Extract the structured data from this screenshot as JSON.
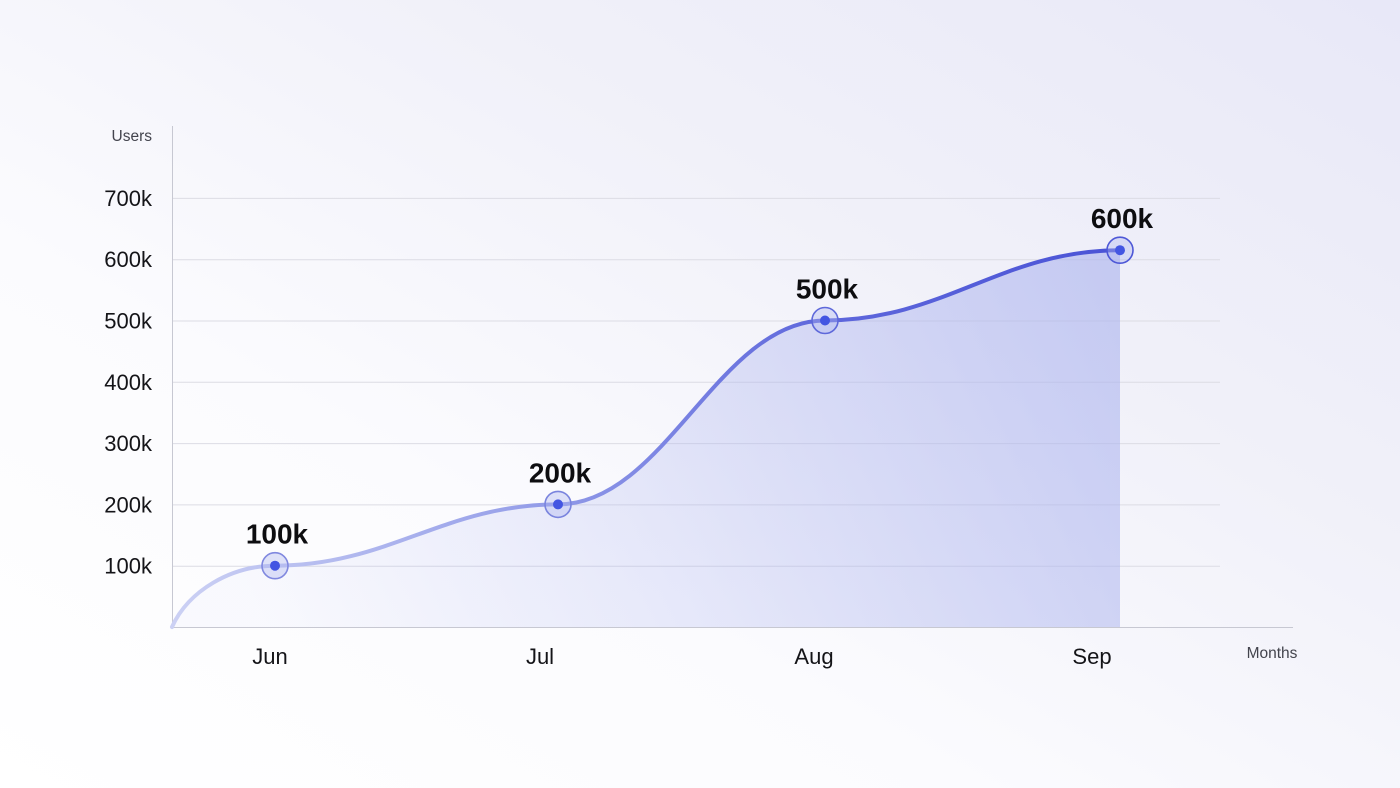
{
  "chart_data": {
    "type": "area",
    "title": "",
    "ylabel": "Users",
    "xlabel": "Months",
    "categories": [
      "Jun",
      "Jul",
      "Aug",
      "Sep"
    ],
    "values": [
      100000,
      200000,
      500000,
      600000
    ],
    "point_labels": [
      "100k",
      "200k",
      "500k",
      "600k"
    ],
    "ytick_labels": [
      "700k",
      "600k",
      "500k",
      "400k",
      "300k",
      "200k",
      "100k"
    ],
    "ytick_values": [
      700000,
      600000,
      500000,
      400000,
      300000,
      200000,
      100000
    ],
    "ylim": [
      0,
      800000
    ],
    "grid": true,
    "legend": "none",
    "curve_starts_at_origin": true,
    "style": {
      "background_from": "#e8e8f8",
      "background_to": "#ffffff",
      "grid_color": "#dcdce4",
      "axis_color": "#c7c8d2",
      "text_color": "#141418",
      "muted_text_color": "#43444d",
      "line_gradient": [
        "#ccd1f4",
        "#9aa3ea",
        "#5f68dc",
        "#4a53d6"
      ],
      "fill_color": "#aab2ee",
      "marker_ring_colors": [
        "#8088df",
        "#7a84de",
        "#5e68da",
        "#4e58d7"
      ],
      "marker_ring_fill": "#aeb5ef",
      "marker_dot_color": "#4355e2"
    }
  }
}
